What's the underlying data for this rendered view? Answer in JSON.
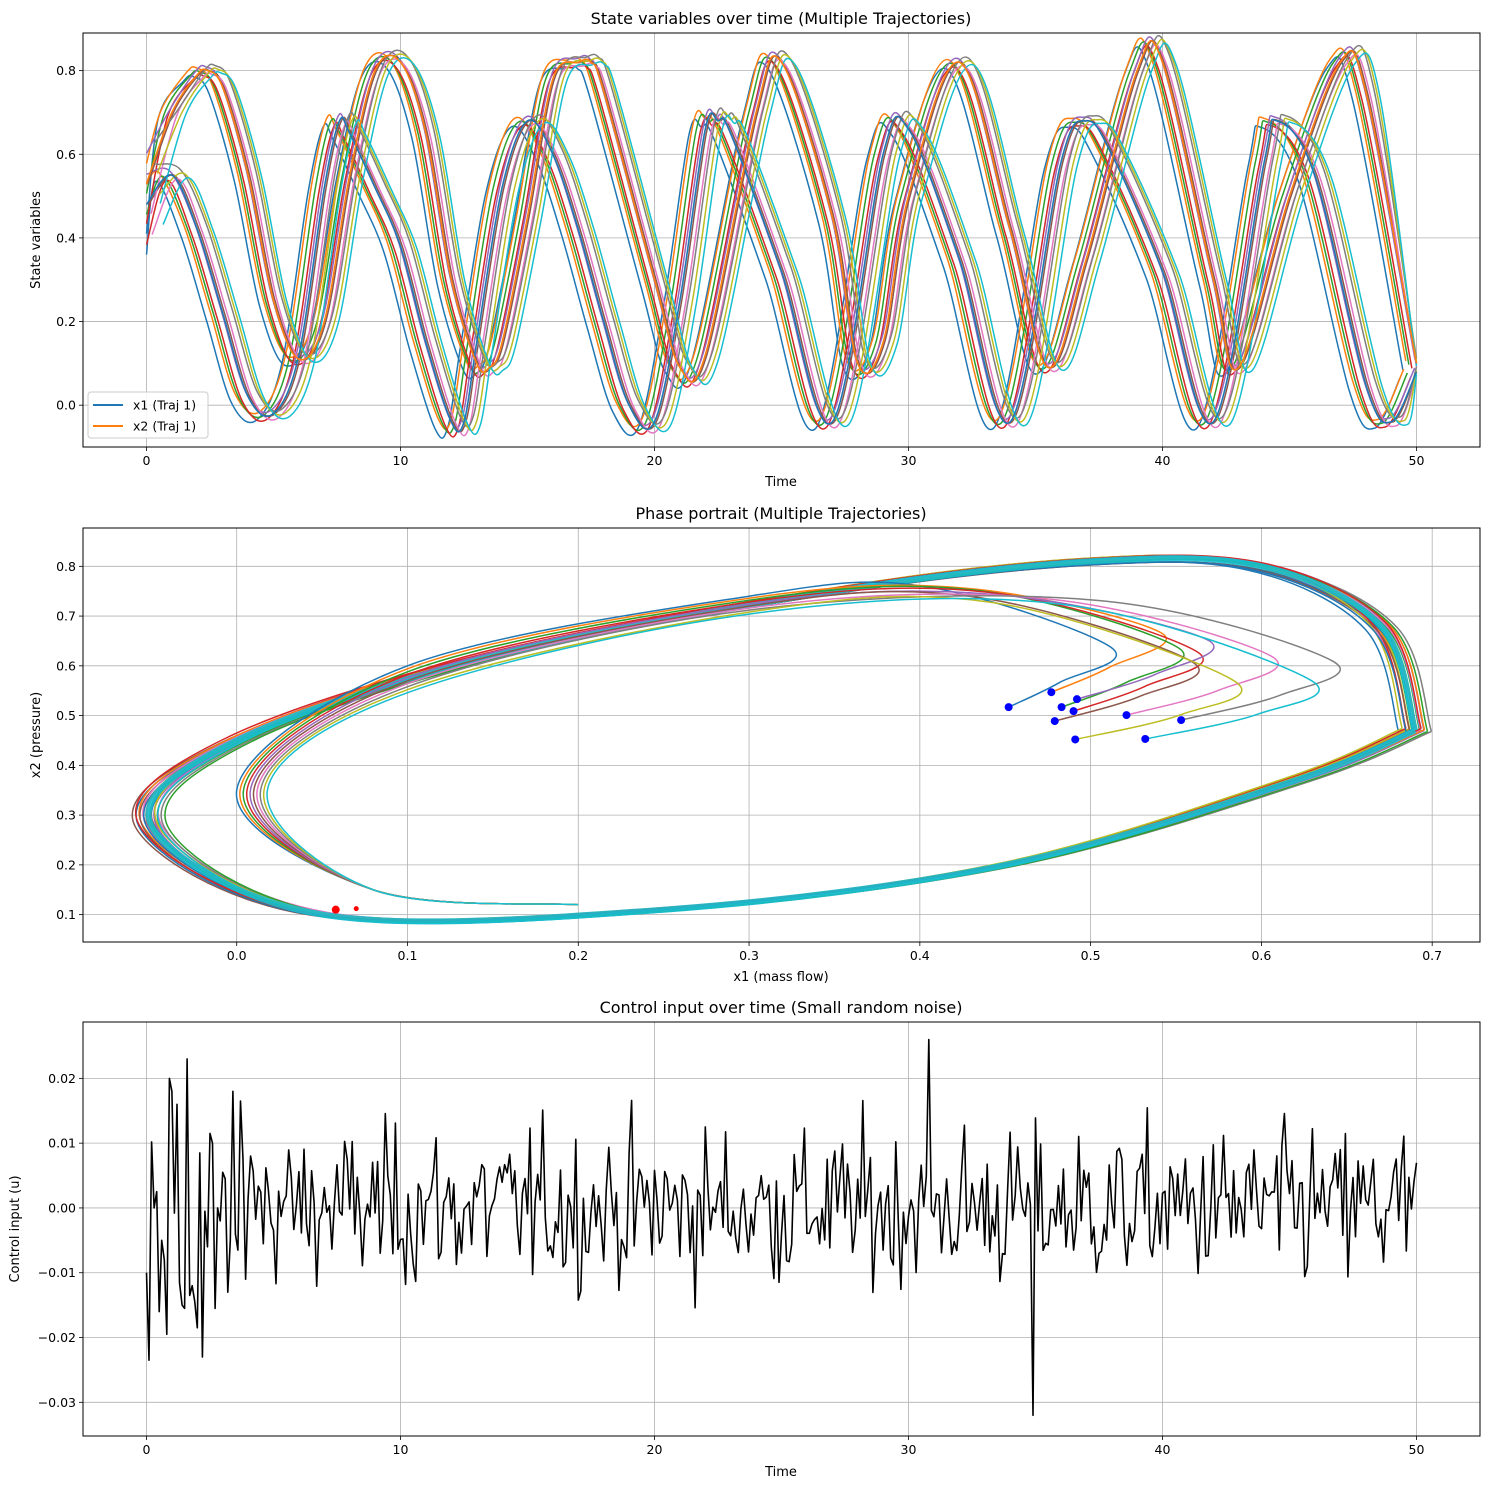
{
  "chart_data": [
    {
      "type": "line",
      "title": "State variables over time (Multiple Trajectories)",
      "xlabel": "Time",
      "ylabel": "State variables",
      "xlim": [
        -2.5,
        52.5
      ],
      "ylim": [
        -0.1,
        0.89
      ],
      "xticks": [
        0,
        10,
        20,
        30,
        40,
        50
      ],
      "yticks": [
        0.0,
        0.2,
        0.4,
        0.6,
        0.8
      ],
      "xtick_labels": [
        "0",
        "10",
        "20",
        "30",
        "40",
        "50"
      ],
      "ytick_labels": [
        "0.0",
        "0.2",
        "0.4",
        "0.6",
        "0.8"
      ],
      "grid": true,
      "legend_position": "lower-left",
      "legend": [
        "x1 (Traj 1)",
        "x2 (Traj 1)"
      ],
      "trajectory_count": 10,
      "series": [
        {
          "name": "x1 (Traj 1)",
          "color": "#1f77b4",
          "model": "x1",
          "x": [
            0,
            1,
            2,
            3,
            4,
            5,
            6,
            7,
            7.6,
            8,
            9,
            10,
            11,
            12,
            12.5,
            13,
            14,
            15,
            16,
            17,
            18,
            19,
            20,
            21,
            22,
            22.5,
            23,
            25,
            27,
            29,
            30,
            32,
            34,
            36,
            37,
            38,
            40,
            42,
            44,
            44.5,
            46,
            48,
            49,
            50
          ],
          "y": [
            0.48,
            0.55,
            0.42,
            0.22,
            0.02,
            -0.02,
            0.12,
            0.52,
            0.68,
            0.65,
            0.52,
            0.38,
            0.15,
            -0.04,
            -0.04,
            0.15,
            0.52,
            0.68,
            0.6,
            0.42,
            0.2,
            0.0,
            -0.04,
            0.25,
            0.66,
            0.68,
            0.65,
            0.32,
            -0.04,
            0.6,
            0.66,
            0.35,
            -0.04,
            0.58,
            0.68,
            0.6,
            0.32,
            -0.04,
            0.58,
            0.68,
            0.55,
            0.05,
            -0.04,
            0.08
          ]
        },
        {
          "name": "x2 (Traj 1)",
          "color": "#ff7f0e",
          "model": "x2",
          "x": [
            0,
            1,
            2,
            2.4,
            3,
            4,
            5,
            6,
            7,
            8,
            9,
            10,
            11,
            12,
            13,
            13.5,
            14,
            15,
            16,
            17,
            17.5,
            18,
            20,
            21,
            22,
            24,
            25,
            27,
            28,
            29,
            30,
            32,
            34,
            35.5,
            37,
            39,
            40,
            42,
            43,
            45,
            47,
            48,
            50
          ],
          "y": [
            0.53,
            0.7,
            0.79,
            0.8,
            0.76,
            0.55,
            0.25,
            0.11,
            0.2,
            0.55,
            0.8,
            0.82,
            0.65,
            0.3,
            0.1,
            0.09,
            0.15,
            0.45,
            0.78,
            0.82,
            0.82,
            0.75,
            0.3,
            0.09,
            0.12,
            0.7,
            0.82,
            0.45,
            0.1,
            0.15,
            0.5,
            0.82,
            0.42,
            0.09,
            0.35,
            0.8,
            0.82,
            0.3,
            0.09,
            0.5,
            0.82,
            0.75,
            0.1
          ]
        }
      ]
    },
    {
      "type": "line",
      "title": "Phase portrait (Multiple Trajectories)",
      "xlabel": "x1 (mass flow)",
      "ylabel": "x2 (pressure)",
      "xlim": [
        -0.09,
        0.728
      ],
      "ylim": [
        0.045,
        0.877
      ],
      "xticks": [
        0.0,
        0.1,
        0.2,
        0.3,
        0.4,
        0.5,
        0.6,
        0.7
      ],
      "yticks": [
        0.1,
        0.2,
        0.3,
        0.4,
        0.5,
        0.6,
        0.7,
        0.8
      ],
      "xtick_labels": [
        "0.0",
        "0.1",
        "0.2",
        "0.3",
        "0.4",
        "0.5",
        "0.6",
        "0.7"
      ],
      "ytick_labels": [
        "0.1",
        "0.2",
        "0.3",
        "0.4",
        "0.5",
        "0.6",
        "0.7",
        "0.8"
      ],
      "grid": true,
      "limit_cycle": {
        "x": [
          0.69,
          0.62,
          0.45,
          0.25,
          0.05,
          -0.05,
          0.0,
          0.15,
          0.35,
          0.5,
          0.6,
          0.67,
          0.69
        ],
        "y": [
          0.47,
          0.37,
          0.2,
          0.11,
          0.1,
          0.28,
          0.45,
          0.62,
          0.75,
          0.81,
          0.8,
          0.68,
          0.47
        ]
      },
      "start_points": {
        "color": "#0000ff",
        "x": [
          0.452,
          0.477,
          0.483,
          0.49,
          0.492,
          0.479,
          0.521,
          0.553,
          0.491,
          0.532
        ],
        "y": [
          0.517,
          0.547,
          0.517,
          0.509,
          0.533,
          0.489,
          0.501,
          0.491,
          0.452,
          0.453
        ]
      },
      "end_points": {
        "color": "#ff0000",
        "x": [
          0.058,
          0.07
        ],
        "y": [
          0.11,
          0.112
        ]
      }
    },
    {
      "type": "line",
      "title": "Control input over time (Small random noise)",
      "xlabel": "Time",
      "ylabel": "Control input (u)",
      "xlim": [
        -2.5,
        52.5
      ],
      "ylim": [
        -0.0352,
        0.0287
      ],
      "xticks": [
        0,
        10,
        20,
        30,
        40,
        50
      ],
      "yticks": [
        -0.03,
        -0.02,
        -0.01,
        0.0,
        0.01,
        0.02
      ],
      "xtick_labels": [
        "0",
        "10",
        "20",
        "30",
        "40",
        "50"
      ],
      "ytick_labels": [
        "−0.03",
        "−0.02",
        "−0.01",
        "0.00",
        "0.01",
        "0.02"
      ],
      "grid": true,
      "series": [
        {
          "name": "",
          "color": "#000000",
          "x": [
            0,
            0.1,
            0.2,
            0.3,
            0.4,
            0.5,
            0.6,
            0.7,
            0.8,
            0.9,
            1.0,
            1.1,
            1.2,
            1.3,
            1.4,
            1.5,
            1.6,
            1.7,
            1.8,
            1.9,
            2.0,
            2.1,
            2.2,
            2.3,
            2.4,
            2.5,
            2.6,
            2.7,
            2.8,
            2.9,
            3.0,
            3.1,
            3.2,
            3.3,
            3.4,
            3.5,
            3.6,
            3.7,
            3.8,
            3.9,
            4.0
          ],
          "y": [
            -0.01,
            -0.0235,
            0.0102,
            0.0,
            0.0025,
            -0.016,
            -0.005,
            -0.008,
            -0.0195,
            0.02,
            0.018,
            -0.0008,
            0.016,
            -0.0115,
            -0.015,
            -0.0155,
            0.023,
            -0.0135,
            -0.012,
            -0.0145,
            -0.0185,
            0.0085,
            -0.023,
            -0.0005,
            -0.006,
            0.0115,
            0.01,
            -0.0155,
            0.0,
            -0.002,
            0.0055,
            0.0045,
            -0.013,
            -0.005,
            0.018,
            -0.004,
            -0.0065,
            0.0165,
            0.0075,
            -0.011,
            0.0015
          ]
        }
      ],
      "min": -0.032,
      "max": 0.026
    }
  ]
}
